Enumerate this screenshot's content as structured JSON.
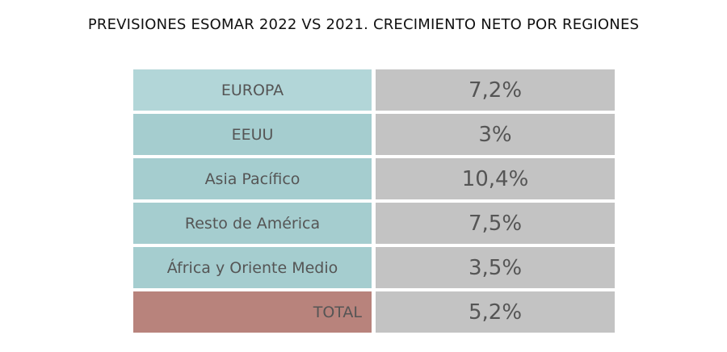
{
  "title": "PREVISIONES ESOMAR 2022 VS 2021. CRECIMIENTO NETO POR REGIONES",
  "colors": {
    "region_first": "#b2d6d8",
    "region": "#a5cdcf",
    "total_region": "#b8837c",
    "value": "#c3c3c3",
    "text": "#555555"
  },
  "chart_data": {
    "type": "table",
    "title": "PREVISIONES ESOMAR 2022 VS 2021. CRECIMIENTO NETO POR REGIONES",
    "rows": [
      {
        "region": "EUROPA",
        "value": "7,2%"
      },
      {
        "region": "EEUU",
        "value": "3%"
      },
      {
        "region": "Asia Pacífico",
        "value": "10,4%"
      },
      {
        "region": "Resto de América",
        "value": "7,5%"
      },
      {
        "region": "África y Oriente Medio",
        "value": "3,5%"
      },
      {
        "region": "TOTAL",
        "value": "5,2%",
        "is_total": true
      }
    ]
  }
}
